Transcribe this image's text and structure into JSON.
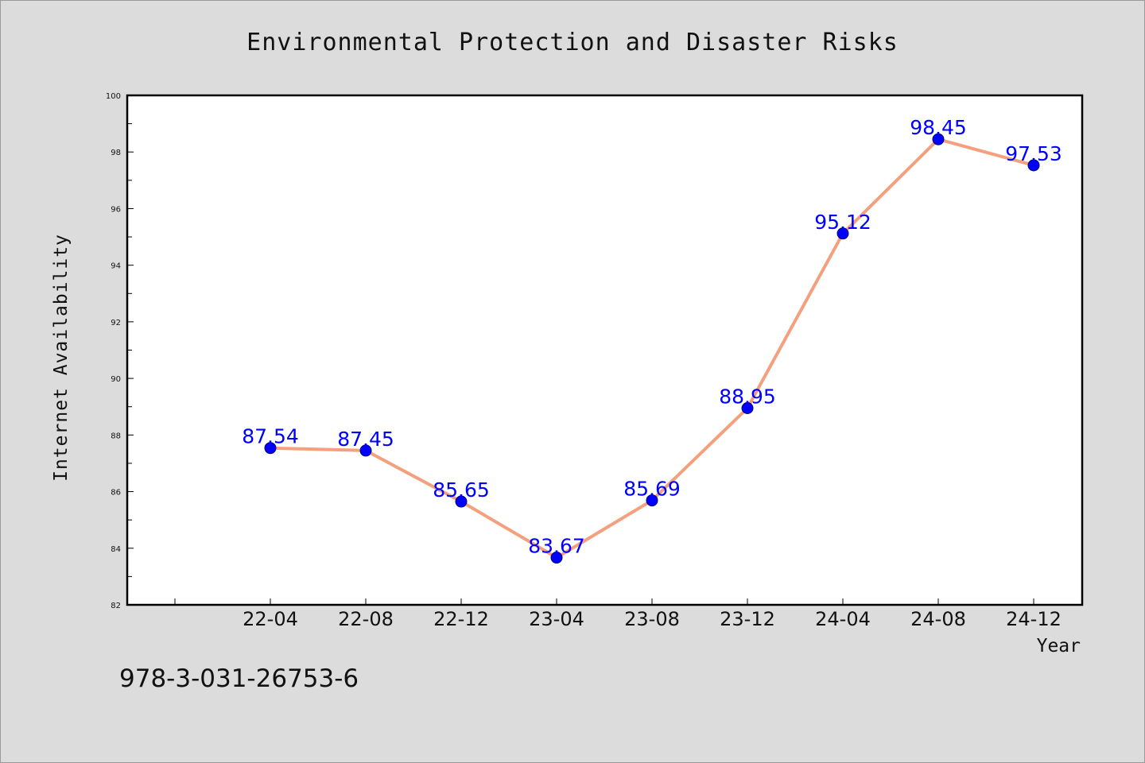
{
  "chart_data": {
    "type": "line",
    "title": "Environmental Protection and Disaster Risks",
    "xlabel": "Year",
    "ylabel": "Internet Availability",
    "categories": [
      "22-04",
      "22-08",
      "22-12",
      "23-04",
      "23-08",
      "23-12",
      "24-04",
      "24-08",
      "24-12"
    ],
    "series": [
      {
        "values": [
          87.54,
          87.45,
          85.65,
          83.67,
          85.69,
          88.95,
          95.12,
          98.45,
          97.53
        ],
        "labels": [
          "87.54",
          "87.45",
          "85.65",
          "83.67",
          "85.69",
          "88.95",
          "95.12",
          "98.45",
          "97.53"
        ],
        "line_color": "#f4a07e",
        "marker_color": "#0000ff"
      }
    ],
    "ylim": [
      82,
      100
    ],
    "yticks": [
      "82",
      "84",
      "86",
      "88",
      "90",
      "92",
      "94",
      "96",
      "98",
      "100"
    ],
    "grid": false,
    "legend": "none"
  },
  "footer": {
    "isbn": "978-3-031-26753-6"
  },
  "colors": {
    "background": "#dcdcdc",
    "plot_background": "#ffffff"
  }
}
